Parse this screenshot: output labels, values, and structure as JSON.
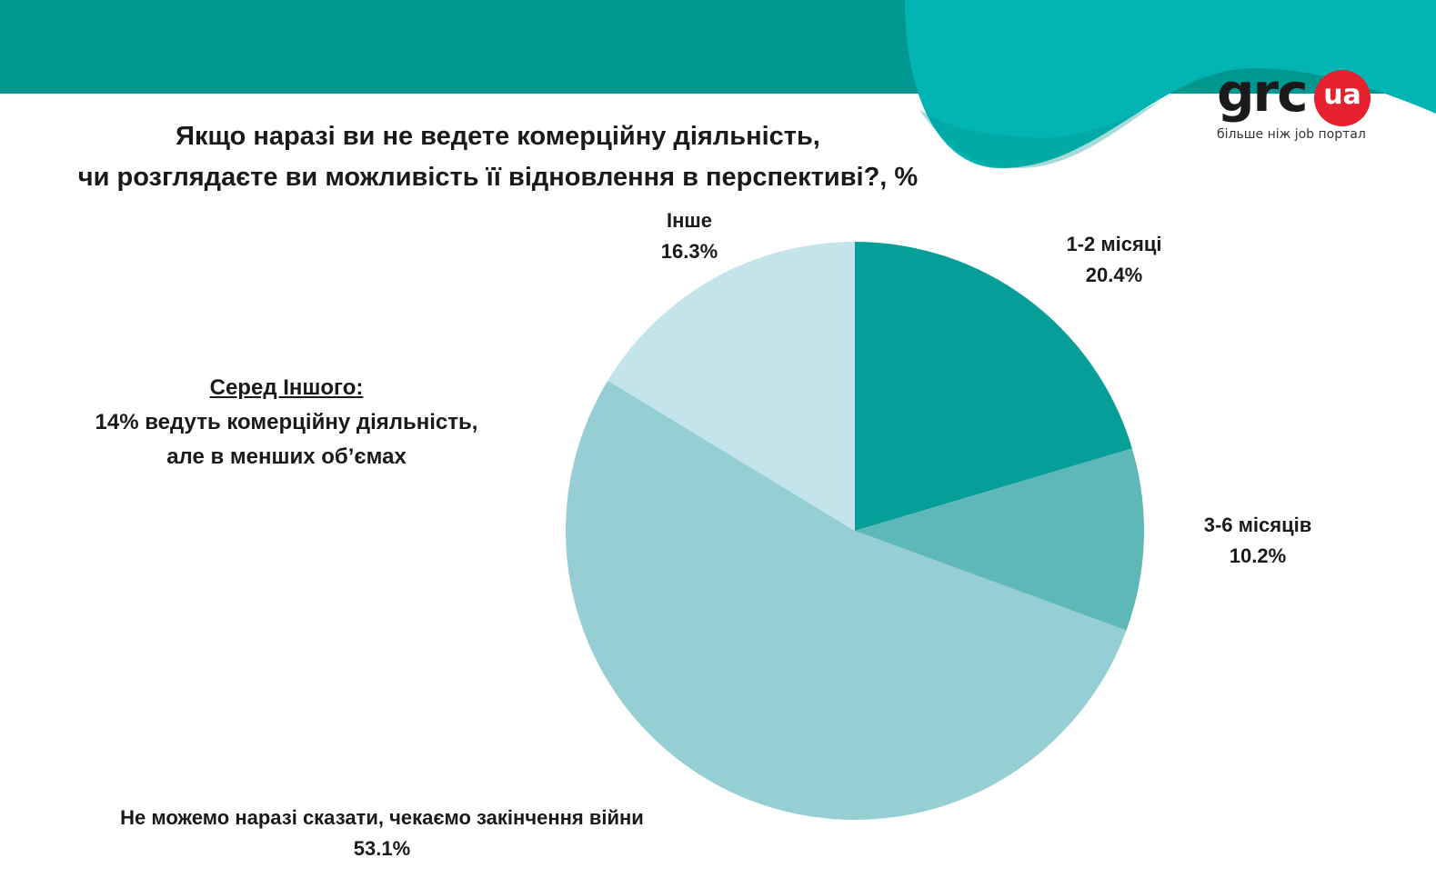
{
  "header": {
    "band_color": "#019791",
    "wave_color": "#02b4b2"
  },
  "logo": {
    "text": "grc",
    "badge": "ua",
    "badge_color": "#e5212e",
    "tagline": "більше ніж job портал"
  },
  "title": {
    "line1": "Якщо наразі ви не ведете комерційну діяльність,",
    "line2": "чи розглядаєте ви можливість її відновлення в перспективі?, %"
  },
  "note": {
    "heading": "Серед Іншого:",
    "line1": "14% ведуть комерційну діяльність,",
    "line2": "але в менших об’ємах"
  },
  "chart_data": {
    "type": "pie",
    "title": "Якщо наразі ви не ведете комерційну діяльність, чи розглядаєте ви можливість її відновлення в перспективі?, %",
    "unit": "%",
    "slices": [
      {
        "label": "1-2 місяці",
        "value": 20.4,
        "display": "20.4%",
        "color": "#069e99"
      },
      {
        "label": "3-6 місяців",
        "value": 10.2,
        "display": "10.2%",
        "color": "#5fb8b8"
      },
      {
        "label": "Не можемо наразі сказати, чекаємо закінчення війни",
        "value": 53.1,
        "display": "53.1%",
        "color": "#95cfd3"
      },
      {
        "label": "Інше",
        "value": 16.3,
        "display": "16.3%",
        "color": "#c3e4ea"
      }
    ],
    "start_angle": "12 o'clock",
    "direction": "clockwise",
    "legend": "none"
  }
}
